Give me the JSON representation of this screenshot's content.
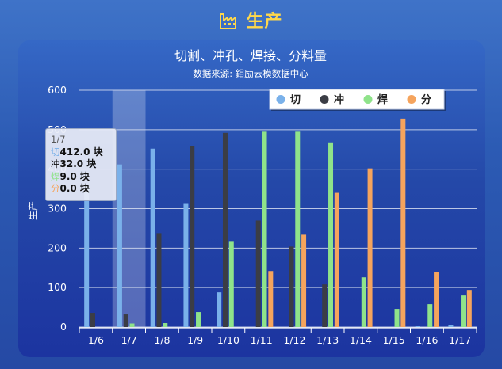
{
  "header": {
    "title": "生产",
    "icon": "factory-icon",
    "title_color": "#ffd84a"
  },
  "chart_data": {
    "type": "bar",
    "title": "切割、冲孔、焊接、分料量",
    "subtitle": "数据来源: 鉬励云模数据中心",
    "ylabel": "生产",
    "ylim": [
      0,
      600
    ],
    "yticks": [
      0,
      100,
      200,
      300,
      400,
      500,
      600
    ],
    "categories": [
      "1/6",
      "1/7",
      "1/8",
      "1/9",
      "1/10",
      "1/11",
      "1/12",
      "1/13",
      "1/14",
      "1/15",
      "1/16",
      "1/17"
    ],
    "series": [
      {
        "name": "切",
        "color": "#7ab1ea",
        "values": [
          360,
          412,
          452,
          314,
          88,
          0,
          0,
          0,
          0,
          0,
          2,
          4
        ]
      },
      {
        "name": "冲",
        "color": "#3b3d45",
        "values": [
          36,
          32,
          238,
          458,
          492,
          270,
          204,
          108,
          0,
          0,
          0,
          0
        ]
      },
      {
        "name": "焊",
        "color": "#8fe38a",
        "values": [
          0,
          9,
          10,
          38,
          218,
          495,
          495,
          468,
          126,
          46,
          58,
          80
        ]
      },
      {
        "name": "分",
        "color": "#f5a45d",
        "values": [
          0,
          0,
          0,
          0,
          0,
          142,
          234,
          340,
          402,
          528,
          140,
          94
        ]
      }
    ],
    "legend_position": "top-right",
    "highlight_category": "1/7",
    "grid": true
  },
  "tooltip": {
    "date": "1/7",
    "rows": [
      {
        "key": "切",
        "value": "412.0 块",
        "color": "#7ab1ea"
      },
      {
        "key": "冲",
        "value": "32.0 块",
        "color": "#3b3d45"
      },
      {
        "key": "焊",
        "value": "9.0 块",
        "color": "#8fe38a"
      },
      {
        "key": "分",
        "value": "0.0 块",
        "color": "#f5a45d"
      }
    ]
  }
}
